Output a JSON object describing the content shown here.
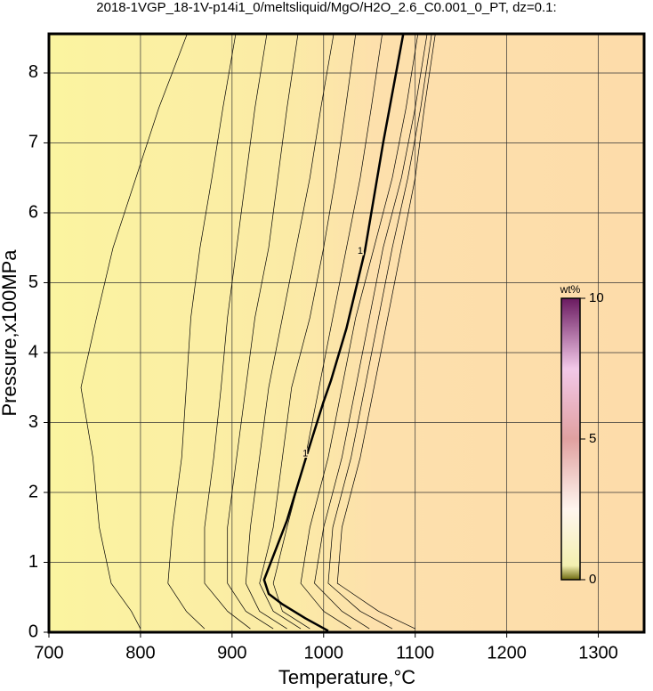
{
  "chart_data": {
    "type": "contour",
    "title": "2018-1VGP_18-1V-p14i1_0/meltsliquid/MgO/H2O_2.6_C0.001_0_PT, dz=0.1:",
    "x_label": "Temperature,°C",
    "y_label": "Pressure,x100MPa",
    "xlim": [
      700,
      1350
    ],
    "ylim": [
      0,
      8.56
    ],
    "xticks": [
      700,
      800,
      900,
      1000,
      1100,
      1200,
      1300
    ],
    "yticks": [
      0,
      1,
      2,
      3,
      4,
      5,
      6,
      7,
      8
    ],
    "grid": true,
    "series": [
      {
        "color": "#000000",
        "line_width": 0.7,
        "x": [
          800,
          790,
          768,
          755,
          748,
          735,
          752,
          770,
          795,
          820,
          851
        ],
        "values": [
          0.05,
          0.3,
          0.7,
          1.5,
          2.5,
          3.5,
          4.5,
          5.5,
          6.5,
          7.5,
          8.56
        ]
      },
      {
        "color": "#000000",
        "line_width": 0.7,
        "x": [
          870,
          850,
          830,
          835,
          845,
          850,
          855,
          865,
          878,
          890,
          904
        ],
        "values": [
          0.05,
          0.3,
          0.7,
          1.5,
          2.5,
          3.5,
          4.5,
          5.5,
          6.5,
          7.5,
          8.56
        ]
      },
      {
        "color": "#000000",
        "line_width": 0.7,
        "x": [
          920,
          895,
          870,
          870,
          880,
          888,
          895,
          905,
          915,
          925,
          938
        ],
        "values": [
          0.05,
          0.3,
          0.7,
          1.5,
          2.5,
          3.5,
          4.5,
          5.5,
          6.5,
          7.5,
          8.56
        ]
      },
      {
        "color": "#000000",
        "line_width": 0.7,
        "x": [
          945,
          915,
          895,
          895,
          905,
          915,
          925,
          940,
          950,
          960,
          972
        ],
        "values": [
          0.05,
          0.3,
          0.7,
          1.5,
          2.5,
          3.5,
          4.5,
          5.5,
          6.5,
          7.5,
          8.56
        ]
      },
      {
        "color": "#000000",
        "line_width": 0.7,
        "x": [
          960,
          930,
          915,
          920,
          930,
          940,
          955,
          970,
          985,
          997,
          1011
        ],
        "values": [
          0.05,
          0.3,
          0.7,
          1.5,
          2.5,
          3.5,
          4.5,
          5.5,
          6.5,
          7.5,
          8.56
        ]
      },
      {
        "color": "#000000",
        "line_width": 0.7,
        "x": [
          975,
          945,
          930,
          945,
          955,
          965,
          985,
          1000,
          1013,
          1024,
          1035
        ],
        "values": [
          0.05,
          0.3,
          0.7,
          1.5,
          2.5,
          3.5,
          4.5,
          5.5,
          6.5,
          7.5,
          8.56
        ]
      },
      {
        "color": "#000000",
        "line_width": 0.7,
        "x": [
          985,
          955,
          945,
          960,
          980,
          995,
          1010,
          1025,
          1040,
          1052,
          1064
        ],
        "values": [
          0.05,
          0.3,
          0.7,
          1.5,
          2.5,
          3.5,
          4.5,
          5.5,
          6.5,
          7.5,
          8.56
        ]
      },
      {
        "color": "#000000",
        "line_width": 2.5,
        "x": [
          1005,
          980,
          955,
          940,
          935,
          960,
          982,
          1000,
          1008,
          1025,
          1035,
          1045,
          1065,
          1087
        ],
        "values": [
          0.02,
          0.2,
          0.4,
          0.55,
          0.75,
          1.6,
          2.55,
          3.3,
          3.6,
          4.35,
          4.9,
          5.45,
          7.0,
          8.56
        ]
      },
      {
        "color": "#000000",
        "line_width": 0.7,
        "x": [
          1030,
          1000,
          975,
          985,
          1005,
          1020,
          1035,
          1055,
          1075,
          1090,
          1103
        ],
        "values": [
          0.05,
          0.3,
          0.7,
          1.5,
          2.5,
          3.5,
          4.5,
          5.5,
          6.5,
          7.5,
          8.56
        ]
      },
      {
        "color": "#000000",
        "line_width": 0.7,
        "x": [
          1050,
          1020,
          990,
          1000,
          1020,
          1035,
          1050,
          1065,
          1085,
          1100,
          1113
        ],
        "values": [
          0.05,
          0.3,
          0.7,
          1.5,
          2.5,
          3.5,
          4.5,
          5.5,
          6.5,
          7.5,
          8.56
        ]
      },
      {
        "color": "#000000",
        "line_width": 0.7,
        "x": [
          1075,
          1040,
          1005,
          1010,
          1030,
          1045,
          1060,
          1075,
          1092,
          1106,
          1118
        ],
        "values": [
          0.05,
          0.3,
          0.7,
          1.5,
          2.5,
          3.5,
          4.5,
          5.5,
          6.5,
          7.5,
          8.56
        ]
      },
      {
        "color": "#000000",
        "line_width": 0.7,
        "x": [
          1100,
          1060,
          1015,
          1020,
          1040,
          1055,
          1070,
          1085,
          1100,
          1110,
          1122
        ],
        "values": [
          0.05,
          0.3,
          0.7,
          1.5,
          2.5,
          3.5,
          4.5,
          5.5,
          6.5,
          7.5,
          8.56
        ]
      }
    ],
    "annotations": [
      {
        "text": "1",
        "x": 1040,
        "y": 5.45
      },
      {
        "text": "1",
        "x": 980,
        "y": 2.55
      }
    ],
    "colorbar": {
      "label": "wt%",
      "lim": [
        0,
        10
      ],
      "ticks": [
        0,
        5,
        10
      ]
    }
  }
}
